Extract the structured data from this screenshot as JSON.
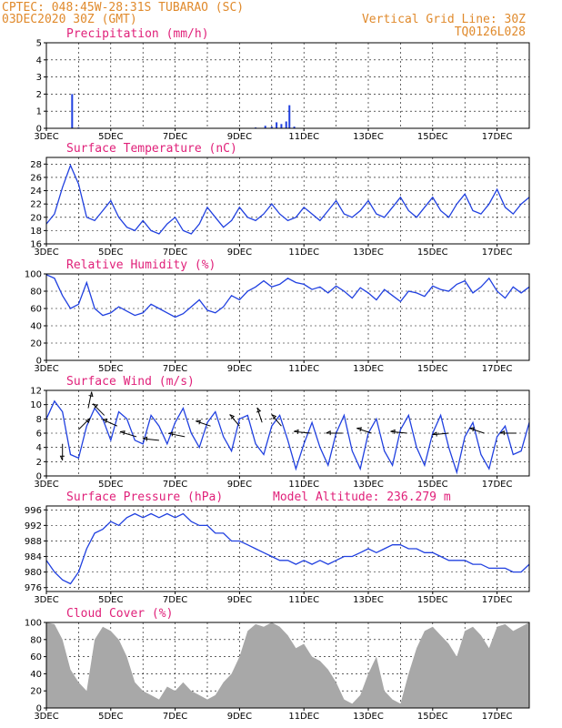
{
  "header": {
    "line1": "CPTEC:   048:45W-28:31S  TUBARAO (SC)",
    "line2": "03DEC2020 30Z (GMT)",
    "right1": "Vertical Grid Line: 30Z",
    "right2": "TQ0126L028"
  },
  "colors": {
    "series": "#2040e0",
    "wind_arrow": "#000000",
    "cloud_fill": "#a8a8a8"
  },
  "chart_data": [
    {
      "id": "precipitation",
      "type": "bar",
      "title": "Precipitation (mm/h)",
      "ylim": [
        0,
        5
      ],
      "yticks": [
        0,
        1,
        2,
        3,
        4,
        5
      ],
      "x_ticks": [
        "3DEC",
        "5DEC",
        "7DEC",
        "9DEC",
        "11DEC",
        "13DEC",
        "15DEC",
        "17DEC"
      ],
      "x": [
        0.8,
        1.0,
        6.5,
        6.8,
        7.0,
        7.15,
        7.3,
        7.45,
        7.55,
        7.7
      ],
      "values": [
        2.0,
        0.05,
        0.05,
        0.15,
        0.1,
        0.35,
        0.25,
        0.4,
        1.35,
        0.1
      ]
    },
    {
      "id": "temperature",
      "type": "line",
      "title": "Surface Temperature (nC)",
      "ylim": [
        16,
        29
      ],
      "yticks": [
        16,
        18,
        20,
        22,
        24,
        26,
        28
      ],
      "x_ticks": [
        "3DEC",
        "5DEC",
        "7DEC",
        "9DEC",
        "11DEC",
        "13DEC",
        "15DEC",
        "17DEC"
      ],
      "x": [
        0,
        0.25,
        0.5,
        0.75,
        1.0,
        1.25,
        1.5,
        1.75,
        2.0,
        2.25,
        2.5,
        2.75,
        3.0,
        3.25,
        3.5,
        3.75,
        4.0,
        4.25,
        4.5,
        4.75,
        5.0,
        5.25,
        5.5,
        5.75,
        6.0,
        6.25,
        6.5,
        6.75,
        7.0,
        7.25,
        7.5,
        7.75,
        8.0,
        8.25,
        8.5,
        8.75,
        9.0,
        9.25,
        9.5,
        9.75,
        10.0,
        10.25,
        10.5,
        10.75,
        11.0,
        11.25,
        11.5,
        11.75,
        12.0,
        12.25,
        12.5,
        12.75,
        13.0,
        13.25,
        13.5,
        13.75,
        14.0,
        14.25,
        14.5,
        14.75,
        15.0
      ],
      "values": [
        19,
        20.5,
        24.5,
        27.8,
        25,
        20,
        19.5,
        21,
        22.5,
        20,
        18.5,
        18,
        19.5,
        18,
        17.5,
        19,
        20,
        18,
        17.5,
        19,
        21.5,
        20,
        18.5,
        19.5,
        21.5,
        20,
        19.5,
        20.5,
        22,
        20.5,
        19.5,
        20,
        21.5,
        20.5,
        19.5,
        21,
        22.5,
        20.5,
        20,
        21,
        22.5,
        20.5,
        20,
        21.5,
        23,
        21,
        20,
        21.5,
        23,
        21,
        20,
        22,
        23.5,
        21,
        20.5,
        22,
        24.2,
        21.5,
        20.5,
        22,
        23
      ]
    },
    {
      "id": "humidity",
      "type": "line",
      "title": "Relative Humidity (%)",
      "ylim": [
        0,
        100
      ],
      "yticks": [
        0,
        20,
        40,
        60,
        80,
        100
      ],
      "x_ticks": [
        "3DEC",
        "5DEC",
        "7DEC",
        "9DEC",
        "11DEC",
        "13DEC",
        "15DEC",
        "17DEC"
      ],
      "x": [
        0,
        0.25,
        0.5,
        0.75,
        1.0,
        1.25,
        1.5,
        1.75,
        2.0,
        2.25,
        2.5,
        2.75,
        3.0,
        3.25,
        3.5,
        3.75,
        4.0,
        4.25,
        4.5,
        4.75,
        5.0,
        5.25,
        5.5,
        5.75,
        6.0,
        6.25,
        6.5,
        6.75,
        7.0,
        7.25,
        7.5,
        7.75,
        8.0,
        8.25,
        8.5,
        8.75,
        9.0,
        9.25,
        9.5,
        9.75,
        10.0,
        10.25,
        10.5,
        10.75,
        11.0,
        11.25,
        11.5,
        11.75,
        12.0,
        12.25,
        12.5,
        12.75,
        13.0,
        13.25,
        13.5,
        13.75,
        14.0,
        14.25,
        14.5,
        14.75,
        15.0
      ],
      "values": [
        99,
        95,
        75,
        60,
        65,
        90,
        60,
        52,
        55,
        62,
        57,
        52,
        55,
        65,
        60,
        55,
        50,
        54,
        62,
        70,
        58,
        55,
        62,
        75,
        70,
        80,
        85,
        92,
        85,
        88,
        95,
        90,
        88,
        82,
        85,
        78,
        86,
        80,
        72,
        84,
        78,
        70,
        82,
        75,
        68,
        80,
        78,
        74,
        86,
        82,
        80,
        88,
        92,
        78,
        85,
        95,
        80,
        72,
        85,
        78,
        85
      ]
    },
    {
      "id": "wind",
      "type": "line",
      "title": "Surface Wind (m/s)",
      "ylim": [
        0,
        12
      ],
      "yticks": [
        0,
        2,
        4,
        6,
        8,
        10,
        12
      ],
      "x_ticks": [
        "3DEC",
        "5DEC",
        "7DEC",
        "9DEC",
        "11DEC",
        "13DEC",
        "15DEC",
        "17DEC"
      ],
      "x": [
        0,
        0.25,
        0.5,
        0.75,
        1.0,
        1.25,
        1.5,
        1.75,
        2.0,
        2.25,
        2.5,
        2.75,
        3.0,
        3.25,
        3.5,
        3.75,
        4.0,
        4.25,
        4.5,
        4.75,
        5.0,
        5.25,
        5.5,
        5.75,
        6.0,
        6.25,
        6.5,
        6.75,
        7.0,
        7.25,
        7.5,
        7.75,
        8.0,
        8.25,
        8.5,
        8.75,
        9.0,
        9.25,
        9.5,
        9.75,
        10.0,
        10.25,
        10.5,
        10.75,
        11.0,
        11.25,
        11.5,
        11.75,
        12.0,
        12.25,
        12.5,
        12.75,
        13.0,
        13.25,
        13.5,
        13.75,
        14.0,
        14.25,
        14.5,
        14.75,
        15.0
      ],
      "values": [
        8,
        10.5,
        9,
        3,
        2.5,
        7,
        9.5,
        8,
        5,
        9,
        8,
        5,
        4.5,
        8.5,
        7,
        4.5,
        7.5,
        9.5,
        6,
        4,
        7.5,
        9,
        5.5,
        3.5,
        8,
        8.5,
        4.5,
        3,
        7,
        8.5,
        5,
        1,
        4.5,
        7.5,
        4,
        1.5,
        6,
        8.5,
        3.5,
        1,
        6,
        8,
        3.5,
        1.5,
        6.5,
        8.5,
        4,
        1.5,
        6,
        8.5,
        4,
        0.5,
        5.5,
        7.5,
        3,
        1,
        5.5,
        7,
        3,
        3.5,
        7.5
      ]
    },
    {
      "id": "pressure",
      "type": "line",
      "title": "Surface Pressure (hPa)",
      "subtitle": "Model Altitude: 236.279 m",
      "ylim": [
        975,
        997
      ],
      "yticks": [
        976,
        980,
        984,
        988,
        992,
        996
      ],
      "x_ticks": [
        "3DEC",
        "5DEC",
        "7DEC",
        "9DEC",
        "11DEC",
        "13DEC",
        "15DEC",
        "17DEC"
      ],
      "x": [
        0,
        0.25,
        0.5,
        0.75,
        1.0,
        1.25,
        1.5,
        1.75,
        2.0,
        2.25,
        2.5,
        2.75,
        3.0,
        3.25,
        3.5,
        3.75,
        4.0,
        4.25,
        4.5,
        4.75,
        5.0,
        5.25,
        5.5,
        5.75,
        6.0,
        6.25,
        6.5,
        6.75,
        7.0,
        7.25,
        7.5,
        7.75,
        8.0,
        8.25,
        8.5,
        8.75,
        9.0,
        9.25,
        9.5,
        9.75,
        10.0,
        10.25,
        10.5,
        10.75,
        11.0,
        11.25,
        11.5,
        11.75,
        12.0,
        12.25,
        12.5,
        12.75,
        13.0,
        13.25,
        13.5,
        13.75,
        14.0,
        14.25,
        14.5,
        14.75,
        15.0
      ],
      "values": [
        983,
        980,
        978,
        977,
        980,
        986,
        990,
        991,
        993,
        992,
        994,
        995,
        994,
        995,
        994,
        995,
        994,
        995,
        993,
        992,
        992,
        990,
        990,
        988,
        988,
        987,
        986,
        985,
        984,
        983,
        983,
        982,
        983,
        982,
        983,
        982,
        983,
        984,
        984,
        985,
        986,
        985,
        986,
        987,
        987,
        986,
        986,
        985,
        985,
        984,
        983,
        983,
        983,
        982,
        982,
        981,
        981,
        981,
        980,
        980,
        982
      ]
    },
    {
      "id": "cloud",
      "type": "area",
      "title": "Cloud Cover (%)",
      "ylim": [
        0,
        100
      ],
      "yticks": [
        0,
        20,
        40,
        60,
        80,
        100
      ],
      "x_ticks": [
        "3DEC",
        "5DEC",
        "7DEC",
        "9DEC",
        "11DEC",
        "13DEC",
        "15DEC",
        "17DEC"
      ],
      "x": [
        0,
        0.25,
        0.5,
        0.75,
        1.0,
        1.25,
        1.5,
        1.75,
        2.0,
        2.25,
        2.5,
        2.75,
        3.0,
        3.25,
        3.5,
        3.75,
        4.0,
        4.25,
        4.5,
        4.75,
        5.0,
        5.25,
        5.5,
        5.75,
        6.0,
        6.25,
        6.5,
        6.75,
        7.0,
        7.25,
        7.5,
        7.75,
        8.0,
        8.25,
        8.5,
        8.75,
        9.0,
        9.25,
        9.5,
        9.75,
        10.0,
        10.25,
        10.5,
        10.75,
        11.0,
        11.25,
        11.5,
        11.75,
        12.0,
        12.25,
        12.5,
        12.75,
        13.0,
        13.25,
        13.5,
        13.75,
        14.0,
        14.25,
        14.5,
        14.75,
        15.0
      ],
      "values": [
        100,
        98,
        80,
        45,
        30,
        20,
        80,
        95,
        90,
        80,
        60,
        30,
        20,
        15,
        10,
        25,
        20,
        30,
        20,
        15,
        10,
        15,
        30,
        40,
        60,
        90,
        98,
        95,
        100,
        95,
        85,
        70,
        75,
        60,
        55,
        45,
        30,
        10,
        5,
        15,
        40,
        60,
        20,
        10,
        5,
        40,
        70,
        90,
        95,
        85,
        75,
        60,
        90,
        95,
        85,
        70,
        95,
        98,
        90,
        95,
        100
      ]
    }
  ],
  "wind_arrows": [
    {
      "x": 0.5,
      "speed": 4.5,
      "dx": 0.0,
      "dy": -1.0
    },
    {
      "x": 1.0,
      "speed": 6.5,
      "dx": 0.7,
      "dy": 0.7
    },
    {
      "x": 1.3,
      "speed": 9.5,
      "dx": 0.2,
      "dy": 1.0
    },
    {
      "x": 1.8,
      "speed": 8.5,
      "dx": -0.7,
      "dy": 0.7
    },
    {
      "x": 2.2,
      "speed": 7.0,
      "dx": -0.9,
      "dy": 0.4
    },
    {
      "x": 2.8,
      "speed": 5.5,
      "dx": -1.0,
      "dy": 0.3
    },
    {
      "x": 3.5,
      "speed": 5.0,
      "dx": -1.0,
      "dy": 0.1
    },
    {
      "x": 4.3,
      "speed": 5.5,
      "dx": -1.0,
      "dy": 0.2
    },
    {
      "x": 5.1,
      "speed": 7.0,
      "dx": -0.9,
      "dy": 0.3
    },
    {
      "x": 6.0,
      "speed": 7.0,
      "dx": -0.6,
      "dy": 0.7
    },
    {
      "x": 6.7,
      "speed": 7.5,
      "dx": -0.3,
      "dy": 0.9
    },
    {
      "x": 7.3,
      "speed": 7.0,
      "dx": -0.6,
      "dy": 0.7
    },
    {
      "x": 8.2,
      "speed": 6.0,
      "dx": -1.0,
      "dy": 0.1
    },
    {
      "x": 9.2,
      "speed": 6.0,
      "dx": -1.0,
      "dy": 0.0
    },
    {
      "x": 10.1,
      "speed": 6.0,
      "dx": -0.9,
      "dy": 0.3
    },
    {
      "x": 11.2,
      "speed": 6.0,
      "dx": -1.0,
      "dy": 0.1
    },
    {
      "x": 12.5,
      "speed": 6.0,
      "dx": -1.0,
      "dy": -0.1
    },
    {
      "x": 13.6,
      "speed": 6.0,
      "dx": -0.9,
      "dy": 0.3
    },
    {
      "x": 14.6,
      "speed": 6.0,
      "dx": -1.0,
      "dy": 0.0
    }
  ]
}
